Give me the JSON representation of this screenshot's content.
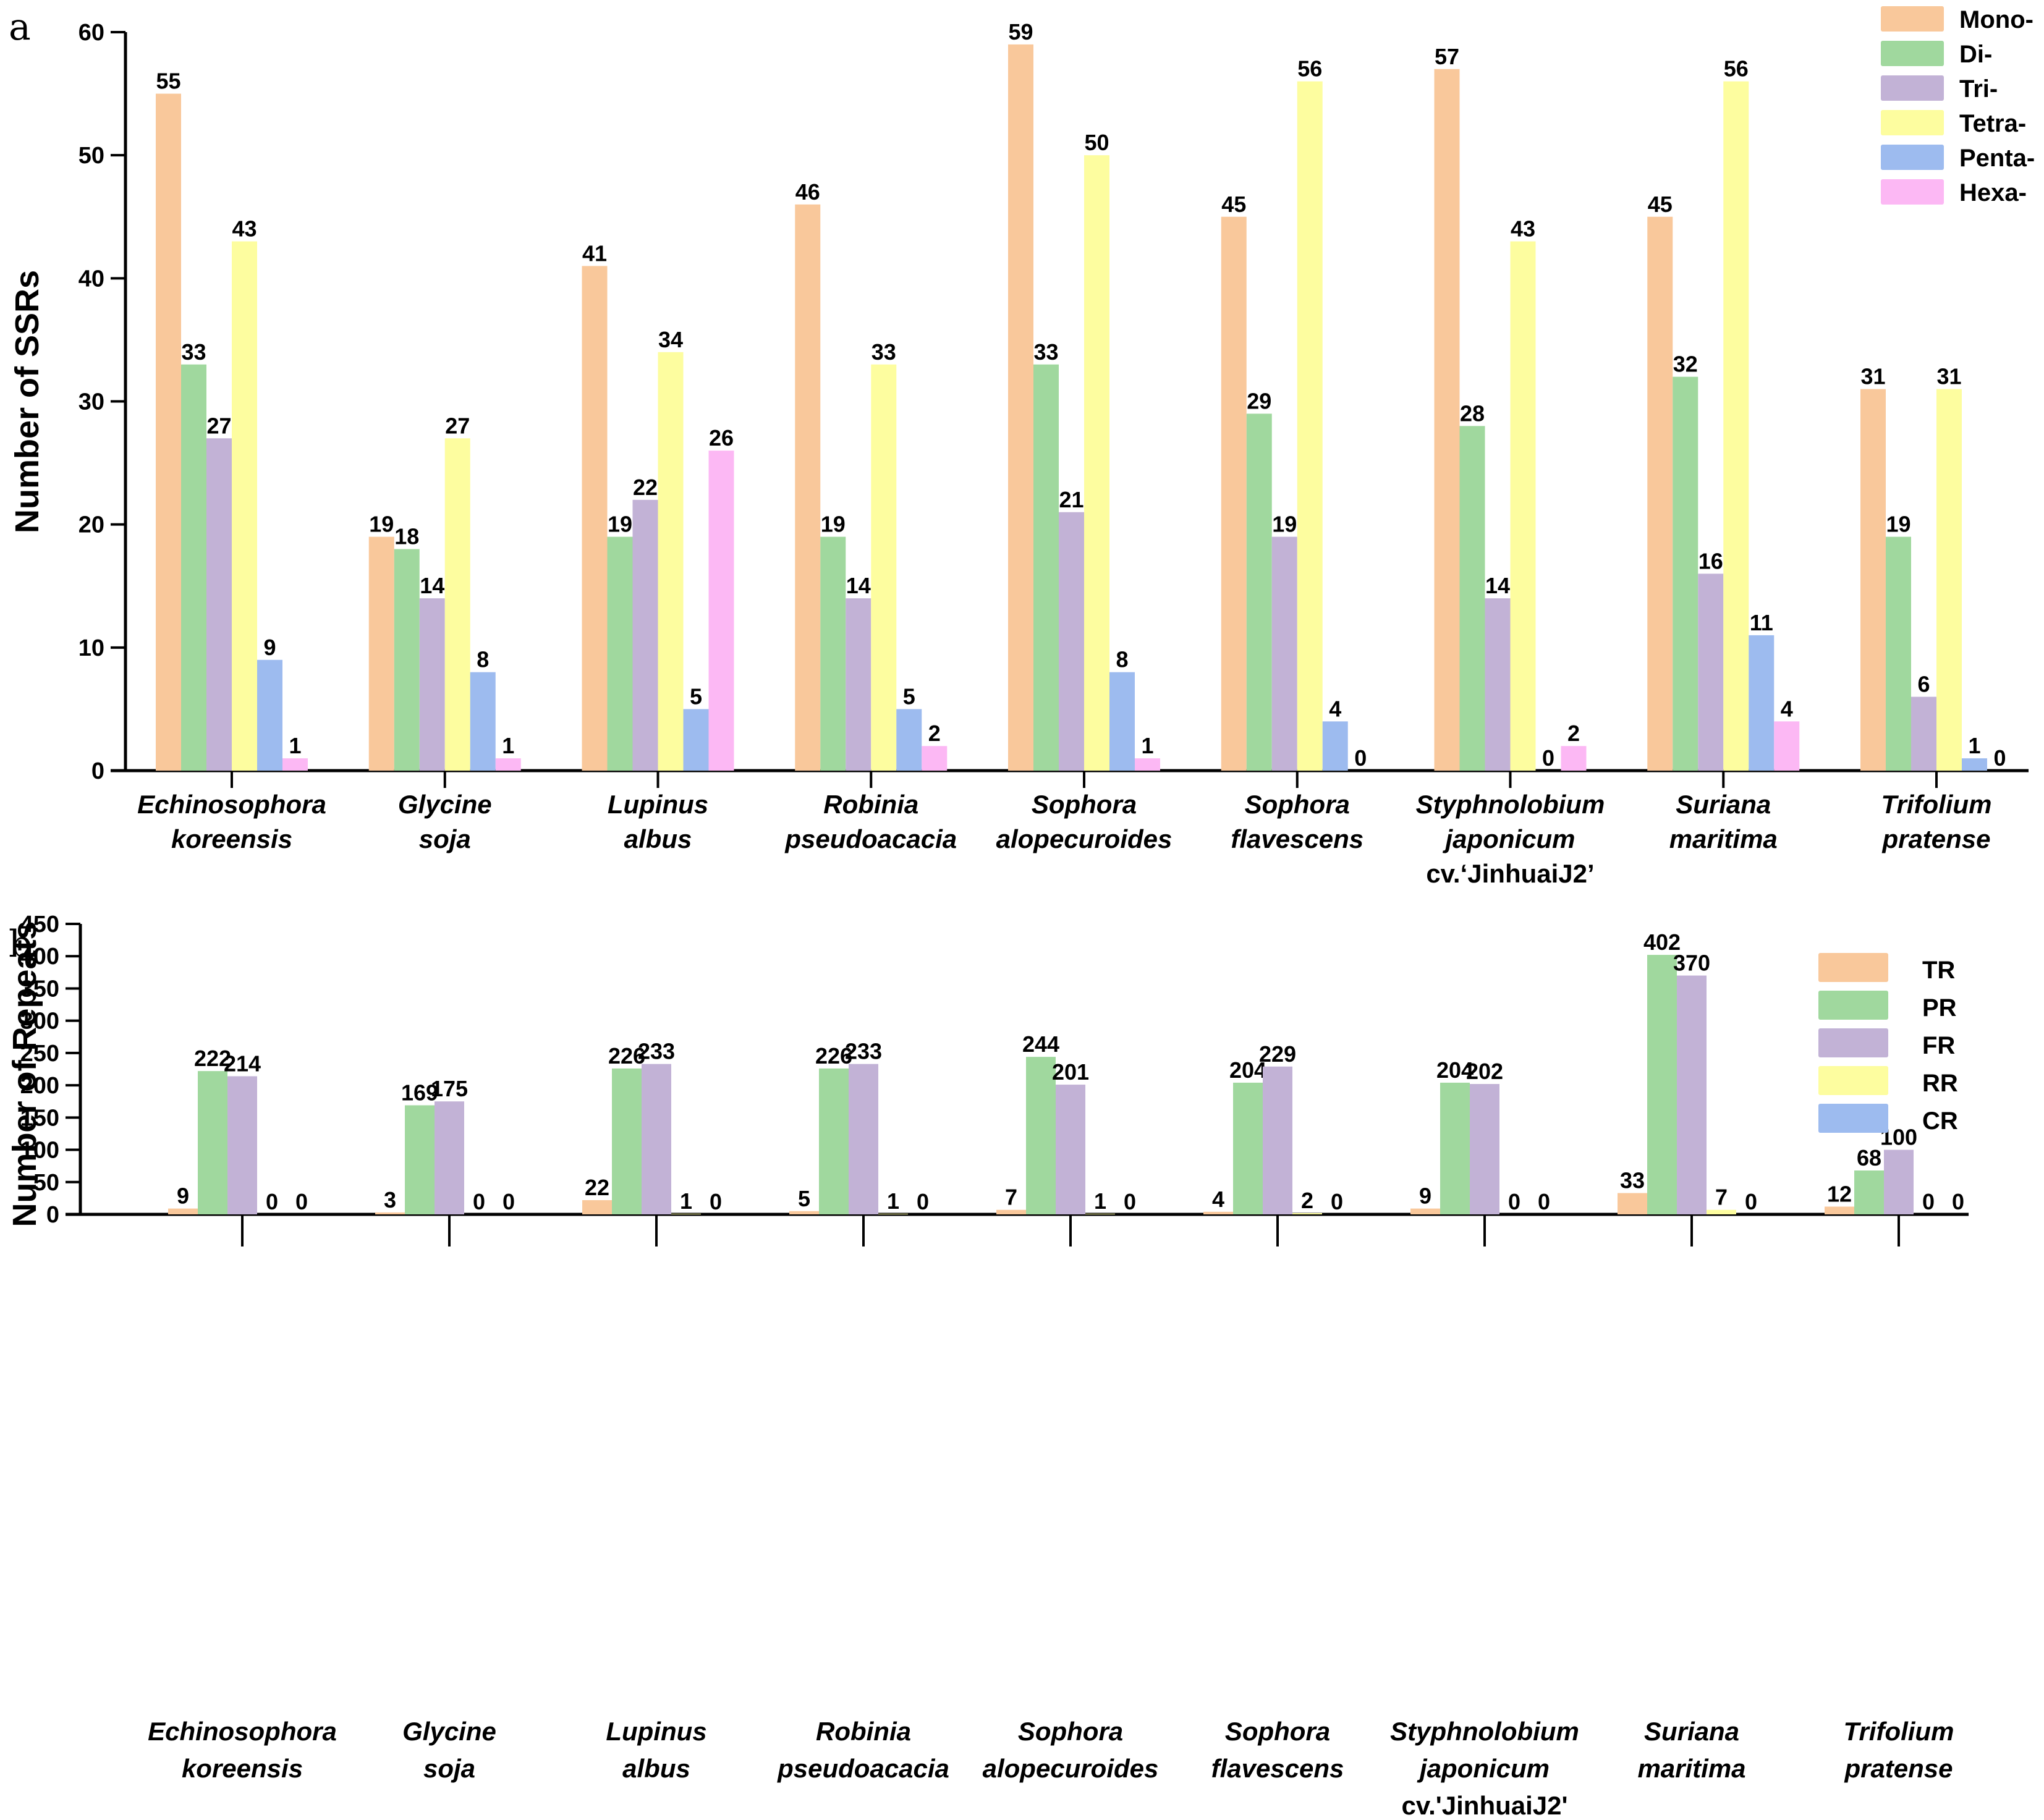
{
  "figure": {
    "panels": [
      "a",
      "b"
    ]
  },
  "chart_data": [
    {
      "panel": "a",
      "type": "bar",
      "title": "",
      "xlabel": "",
      "ylabel": "Number of SSRs",
      "ylim": [
        0,
        60
      ],
      "yticks": [
        0,
        10,
        20,
        30,
        40,
        50,
        60
      ],
      "grid": false,
      "legend_position": "top-right",
      "categories": [
        [
          "Echinosophora",
          "koreensis"
        ],
        [
          "Glycine",
          "soja"
        ],
        [
          "Lupinus",
          "albus"
        ],
        [
          "Robinia",
          "pseudoacacia"
        ],
        [
          "Sophora",
          "alopecuroides"
        ],
        [
          "Sophora",
          "flavescens"
        ],
        [
          "Styphnolobium",
          "japonicum",
          "cv.‘JinhuaiJ2’"
        ],
        [
          "Suriana",
          "maritima"
        ],
        [
          "Trifolium",
          "pratense"
        ]
      ],
      "series": [
        {
          "name": "Mono-",
          "color": "#f9c89b",
          "values": [
            55,
            19,
            41,
            46,
            59,
            45,
            57,
            45,
            31
          ],
          "labels": [
            "55",
            "19",
            "41",
            "46",
            "59",
            "45",
            "57",
            "45",
            "31"
          ]
        },
        {
          "name": "Di-",
          "color": "#a0d89e",
          "values": [
            33,
            18,
            19,
            19,
            33,
            29,
            28,
            32,
            19
          ],
          "labels": [
            "33",
            "18",
            "19",
            "19",
            "33",
            "29",
            "28",
            "32",
            "19"
          ]
        },
        {
          "name": "Tri-",
          "color": "#c2b2d6",
          "values": [
            27,
            14,
            22,
            14,
            21,
            19,
            14,
            16,
            6
          ],
          "labels": [
            "27",
            "14",
            "22",
            "14",
            "21",
            "19",
            "14",
            "16",
            "6"
          ]
        },
        {
          "name": "Tetra-",
          "color": "#fdfd9f",
          "values": [
            43,
            27,
            34,
            33,
            50,
            56,
            43,
            56,
            31
          ],
          "labels": [
            "43",
            "27",
            "34",
            "33",
            "50",
            "56",
            "43",
            "56",
            "31"
          ]
        },
        {
          "name": "Penta-",
          "color": "#9dbbef",
          "values": [
            9,
            8,
            5,
            5,
            8,
            4,
            0,
            11,
            1
          ],
          "labels": [
            "9",
            "8",
            "5",
            "5",
            "8",
            "4",
            "0",
            "11",
            "1"
          ]
        },
        {
          "name": "Hexa-",
          "color": "#fcb8f4",
          "values": [
            1,
            1,
            26,
            2,
            1,
            0,
            2,
            4,
            0
          ],
          "labels": [
            "1",
            "1",
            "26",
            "2",
            "1",
            "0",
            "2",
            "4",
            "0"
          ]
        }
      ]
    },
    {
      "panel": "b",
      "type": "bar",
      "title": "",
      "xlabel": "",
      "ylabel": "Number of Repeats",
      "ylim": [
        0,
        450
      ],
      "yticks": [
        0,
        50,
        100,
        150,
        200,
        250,
        300,
        350,
        400,
        450
      ],
      "grid": false,
      "legend_position": "top-right",
      "categories": [
        [
          "Echinosophora",
          "koreensis"
        ],
        [
          "Glycine",
          "soja"
        ],
        [
          "Lupinus",
          "albus"
        ],
        [
          "Robinia",
          "pseudoacacia"
        ],
        [
          "Sophora",
          "alopecuroides"
        ],
        [
          "Sophora",
          "flavescens"
        ],
        [
          "Styphnolobium",
          "japonicum",
          "cv.'JinhuaiJ2'"
        ],
        [
          "Suriana",
          "maritima"
        ],
        [
          "Trifolium",
          "pratense"
        ]
      ],
      "series": [
        {
          "name": "TR",
          "color": "#f9c89b",
          "values": [
            9,
            3,
            22,
            5,
            7,
            4,
            9,
            33,
            12
          ],
          "labels": [
            "9",
            "3",
            "22",
            "5",
            "7",
            "4",
            "9",
            "33",
            "12"
          ]
        },
        {
          "name": "PR",
          "color": "#a0d89e",
          "values": [
            222,
            169,
            226,
            226,
            244,
            204,
            204,
            402,
            68
          ],
          "labels": [
            "222",
            "169",
            "226",
            "226",
            "244",
            "204",
            "204",
            "402",
            "68"
          ]
        },
        {
          "name": "FR",
          "color": "#c2b2d6",
          "values": [
            214,
            175,
            233,
            233,
            201,
            229,
            202,
            370,
            100
          ],
          "labels": [
            "214",
            "175",
            "233",
            "233",
            "201",
            "229",
            "202",
            "370",
            "100"
          ]
        },
        {
          "name": "RR",
          "color": "#fdfd9f",
          "values": [
            0,
            0,
            1,
            1,
            1,
            2,
            0,
            7,
            0
          ],
          "labels": [
            "0",
            "0",
            "1",
            "1",
            "1",
            "2",
            "0",
            "7",
            "0"
          ]
        },
        {
          "name": "CR",
          "color": "#9dbbef",
          "values": [
            0,
            0,
            0,
            0,
            0,
            0,
            0,
            0,
            0
          ],
          "labels": [
            "0",
            "0",
            "0",
            "0",
            "0",
            "0",
            "0",
            "0",
            "0"
          ]
        }
      ]
    }
  ]
}
